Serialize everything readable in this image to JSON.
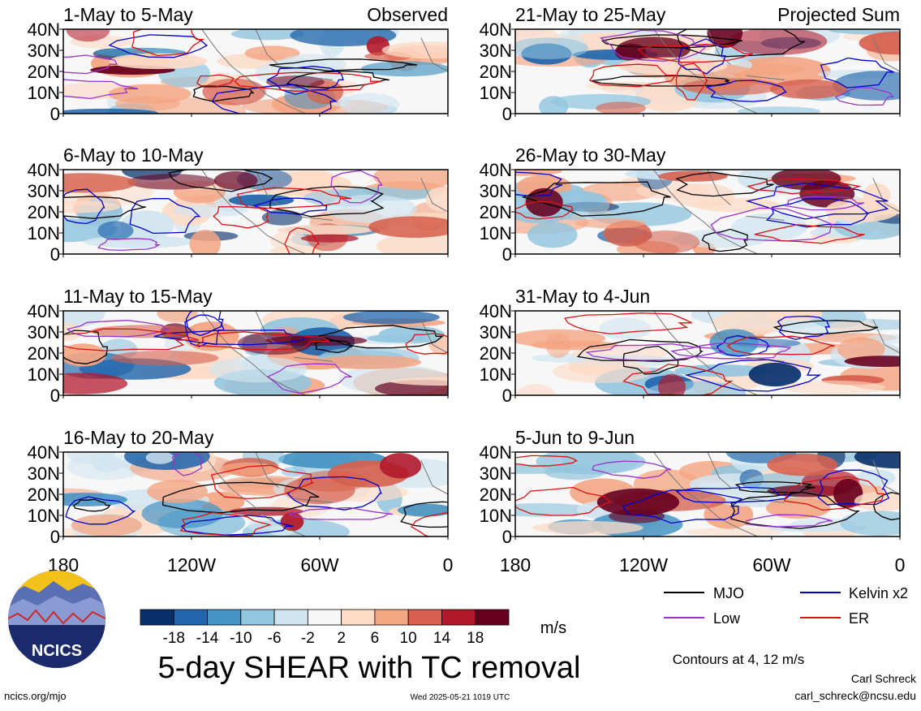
{
  "chart_data": [
    {
      "type": "heatmap",
      "panel_label": "Observed",
      "panels": [
        {
          "title": "1-May to 5-May"
        },
        {
          "title": "6-May to 10-May"
        },
        {
          "title": "11-May to 15-May"
        },
        {
          "title": "16-May to 20-May"
        }
      ]
    },
    {
      "type": "heatmap",
      "panel_label": "Projected Sum",
      "panels": [
        {
          "title": "21-May to 25-May"
        },
        {
          "title": "26-May to 30-May"
        },
        {
          "title": "31-May to 4-Jun"
        },
        {
          "title": "5-Jun to 9-Jun"
        }
      ]
    }
  ],
  "axes": {
    "y_ticks": [
      "40N",
      "30N",
      "20N",
      "10N",
      "0"
    ],
    "x_ticks": [
      "180",
      "120W",
      "60W",
      "0"
    ]
  },
  "colorbar": {
    "ticks": [
      "-18",
      "-14",
      "-10",
      "-6",
      "-2",
      "2",
      "6",
      "10",
      "14",
      "18"
    ],
    "colors": [
      "#08306b",
      "#2166ac",
      "#4393c3",
      "#92c5de",
      "#d1e5f0",
      "#f7f7f7",
      "#fddbc7",
      "#f4a582",
      "#d6604d",
      "#b2182b",
      "#67001f"
    ],
    "unit": "m/s"
  },
  "legend": [
    {
      "label": "MJO",
      "color": "#000000"
    },
    {
      "label": "Kelvin x2",
      "color": "#0000cc"
    },
    {
      "label": "Low",
      "color": "#9933cc"
    },
    {
      "label": "ER",
      "color": "#dd1111"
    }
  ],
  "title": "5-day SHEAR with TC removal",
  "contours_note": "Contours at 4, 12 m/s",
  "author": "Carl Schreck",
  "email": "carl_schreck@ncsu.edu",
  "website": "ncics.org/mjo",
  "timestamp": "Wed 2025-05-21 1019 UTC",
  "logo_text": "NCICS"
}
